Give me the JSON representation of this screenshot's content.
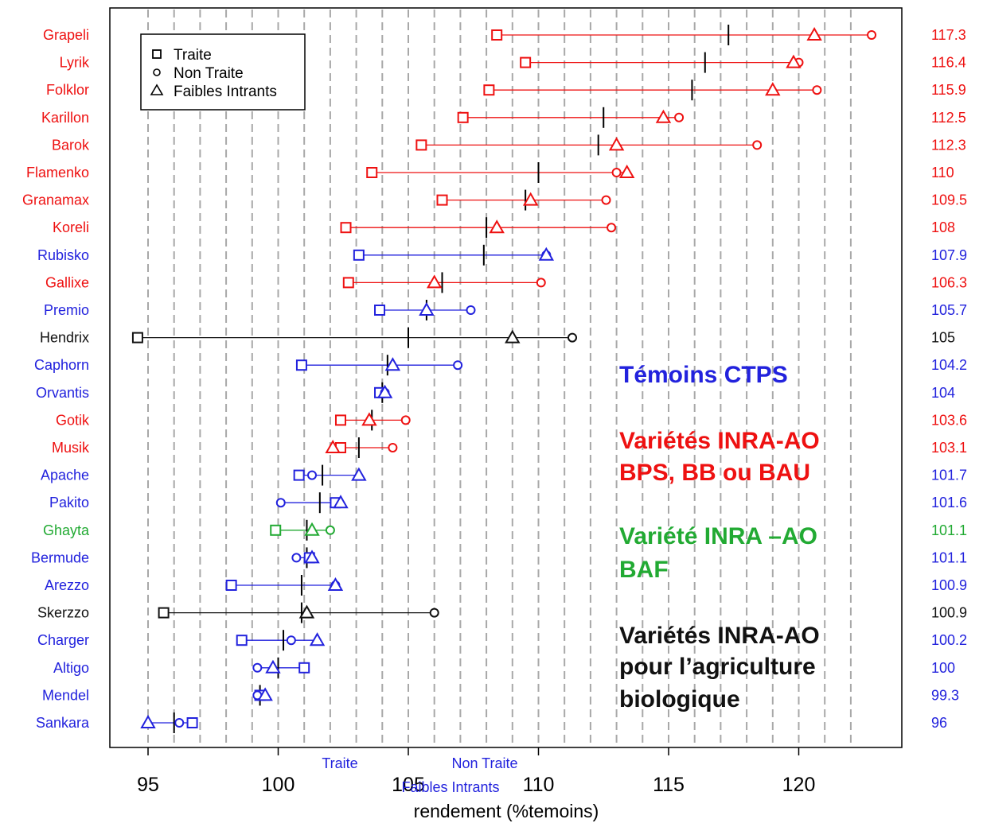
{
  "chart_data": {
    "type": "scatter",
    "xlabel": "rendement (%temoins)",
    "xlim": [
      94.2,
      123.9
    ],
    "xticks": [
      95,
      100,
      105,
      110,
      115,
      120
    ],
    "grid": "vertical dashed lines every 1 unit",
    "legend": {
      "placement": "top-left",
      "entries": [
        {
          "label": "Traite",
          "marker": "square"
        },
        {
          "label": "Non Traite",
          "marker": "circle"
        },
        {
          "label": "Faibles Intrants",
          "marker": "triangle"
        }
      ]
    },
    "bottom_labels": [
      "Traite",
      "Non Traite",
      "Faibles Intrants"
    ],
    "group_colors": {
      "ctps": "#2222dd",
      "inra": "#ee1111",
      "baf": "#22aa33",
      "bio": "#111111"
    },
    "annotations": [
      {
        "lines": [
          "Témoins CTPS"
        ],
        "group": "ctps"
      },
      {
        "lines": [
          "Variétés INRA-AO",
          "BPS, BB ou BAU"
        ],
        "group": "inra"
      },
      {
        "lines": [
          "Variété INRA –AO",
          "BAF"
        ],
        "group": "baf"
      },
      {
        "lines": [
          "Variétés INRA-AO",
          "pour l’agriculture",
          "biologique"
        ],
        "group": "bio"
      }
    ],
    "varieties": [
      {
        "name": "Grapeli",
        "group": "inra",
        "traite": 108.4,
        "non_traite": 122.8,
        "faibles_intrants": 120.6,
        "mean": 117.3,
        "mean_label": "117.3"
      },
      {
        "name": "Lyrik",
        "group": "inra",
        "traite": 109.5,
        "non_traite": 120.0,
        "faibles_intrants": 119.8,
        "mean": 116.4,
        "mean_label": "116.4"
      },
      {
        "name": "Folklor",
        "group": "inra",
        "traite": 108.1,
        "non_traite": 120.7,
        "faibles_intrants": 119.0,
        "mean": 115.9,
        "mean_label": "115.9"
      },
      {
        "name": "Karillon",
        "group": "inra",
        "traite": 107.1,
        "non_traite": 115.4,
        "faibles_intrants": 114.8,
        "mean": 112.5,
        "mean_label": "112.5"
      },
      {
        "name": "Barok",
        "group": "inra",
        "traite": 105.5,
        "non_traite": 118.4,
        "faibles_intrants": 113.0,
        "mean": 112.3,
        "mean_label": "112.3"
      },
      {
        "name": "Flamenko",
        "group": "inra",
        "traite": 103.6,
        "non_traite": 113.0,
        "faibles_intrants": 113.4,
        "mean": 110.0,
        "mean_label": "110"
      },
      {
        "name": "Granamax",
        "group": "inra",
        "traite": 106.3,
        "non_traite": 112.6,
        "faibles_intrants": 109.7,
        "mean": 109.5,
        "mean_label": "109.5"
      },
      {
        "name": "Koreli",
        "group": "inra",
        "traite": 102.6,
        "non_traite": 112.8,
        "faibles_intrants": 108.4,
        "mean": 108.0,
        "mean_label": "108"
      },
      {
        "name": "Rubisko",
        "group": "ctps",
        "traite": 103.1,
        "non_traite": 110.3,
        "faibles_intrants": 110.3,
        "mean": 107.9,
        "mean_label": "107.9"
      },
      {
        "name": "Gallixe",
        "group": "inra",
        "traite": 102.7,
        "non_traite": 110.1,
        "faibles_intrants": 106.0,
        "mean": 106.3,
        "mean_label": "106.3"
      },
      {
        "name": "Premio",
        "group": "ctps",
        "traite": 103.9,
        "non_traite": 107.4,
        "faibles_intrants": 105.7,
        "mean": 105.7,
        "mean_label": "105.7"
      },
      {
        "name": "Hendrix",
        "group": "bio",
        "traite": 94.6,
        "non_traite": 111.3,
        "faibles_intrants": 109.0,
        "mean": 105.0,
        "mean_label": "105"
      },
      {
        "name": "Caphorn",
        "group": "ctps",
        "traite": 100.9,
        "non_traite": 106.9,
        "faibles_intrants": 104.4,
        "mean": 104.2,
        "mean_label": "104.2"
      },
      {
        "name": "Orvantis",
        "group": "ctps",
        "traite": 103.9,
        "non_traite": 104.1,
        "faibles_intrants": 104.1,
        "mean": 104.0,
        "mean_label": "104"
      },
      {
        "name": "Gotik",
        "group": "inra",
        "traite": 102.4,
        "non_traite": 104.9,
        "faibles_intrants": 103.5,
        "mean": 103.6,
        "mean_label": "103.6"
      },
      {
        "name": "Musik",
        "group": "inra",
        "traite": 102.4,
        "non_traite": 104.4,
        "faibles_intrants": 102.1,
        "mean": 103.1,
        "mean_label": "103.1"
      },
      {
        "name": "Apache",
        "group": "ctps",
        "traite": 100.8,
        "non_traite": 101.3,
        "faibles_intrants": 103.1,
        "mean": 101.7,
        "mean_label": "101.7"
      },
      {
        "name": "Pakito",
        "group": "ctps",
        "traite": 102.2,
        "non_traite": 100.1,
        "faibles_intrants": 102.4,
        "mean": 101.6,
        "mean_label": "101.6"
      },
      {
        "name": "Ghayta",
        "group": "baf",
        "traite": 99.9,
        "non_traite": 102.0,
        "faibles_intrants": 101.3,
        "mean": 101.1,
        "mean_label": "101.1"
      },
      {
        "name": "Bermude",
        "group": "ctps",
        "traite": 101.2,
        "non_traite": 100.7,
        "faibles_intrants": 101.3,
        "mean": 101.1,
        "mean_label": "101.1"
      },
      {
        "name": "Arezzo",
        "group": "ctps",
        "traite": 98.2,
        "non_traite": 102.2,
        "faibles_intrants": 102.2,
        "mean": 100.9,
        "mean_label": "100.9"
      },
      {
        "name": "Skerzzo",
        "group": "bio",
        "traite": 95.6,
        "non_traite": 106.0,
        "faibles_intrants": 101.1,
        "mean": 100.9,
        "mean_label": "100.9"
      },
      {
        "name": "Charger",
        "group": "ctps",
        "traite": 98.6,
        "non_traite": 100.5,
        "faibles_intrants": 101.5,
        "mean": 100.2,
        "mean_label": "100.2"
      },
      {
        "name": "Altigo",
        "group": "ctps",
        "traite": 101.0,
        "non_traite": 99.2,
        "faibles_intrants": 99.8,
        "mean": 100.0,
        "mean_label": "100"
      },
      {
        "name": "Mendel",
        "group": "ctps",
        "traite": 99.3,
        "non_traite": 99.2,
        "faibles_intrants": 99.5,
        "mean": 99.3,
        "mean_label": "99.3"
      },
      {
        "name": "Sankara",
        "group": "ctps",
        "traite": 96.7,
        "non_traite": 96.2,
        "faibles_intrants": 95.0,
        "mean": 96.0,
        "mean_label": "96"
      }
    ]
  }
}
